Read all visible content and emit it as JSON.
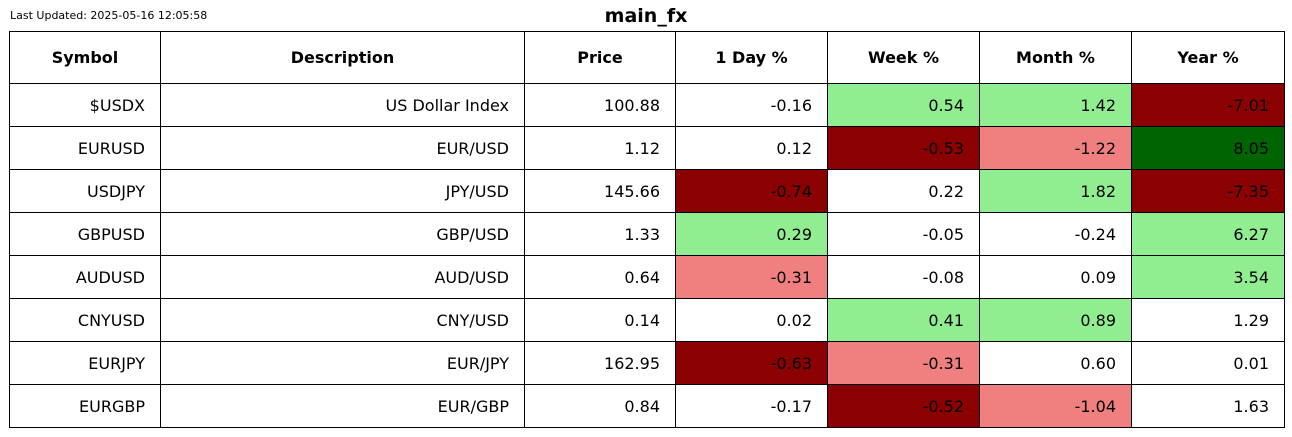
{
  "last_updated": "Last Updated: 2025-05-16 12:05:58",
  "title": "main_fx",
  "colors": {
    "strong_negative": "#8b0000",
    "negative": "#f08080",
    "positive": "#90ee90",
    "strong_positive": "#006400",
    "neutral": "#ffffff"
  },
  "chart_data": {
    "type": "table",
    "title": "main_fx",
    "columns": [
      "Symbol",
      "Description",
      "Price",
      "1 Day %",
      "Week %",
      "Month %",
      "Year %"
    ],
    "rows": [
      {
        "symbol": "$USDX",
        "description": "US Dollar Index",
        "price": "100.88",
        "day": "-0.16",
        "week": "0.54",
        "month": "1.42",
        "year": "-7.01"
      },
      {
        "symbol": "EURUSD",
        "description": "EUR/USD",
        "price": "1.12",
        "day": "0.12",
        "week": "-0.53",
        "month": "-1.22",
        "year": "8.05"
      },
      {
        "symbol": "USDJPY",
        "description": "JPY/USD",
        "price": "145.66",
        "day": "-0.74",
        "week": "0.22",
        "month": "1.82",
        "year": "-7.35"
      },
      {
        "symbol": "GBPUSD",
        "description": "GBP/USD",
        "price": "1.33",
        "day": "0.29",
        "week": "-0.05",
        "month": "-0.24",
        "year": "6.27"
      },
      {
        "symbol": "AUDUSD",
        "description": "AUD/USD",
        "price": "0.64",
        "day": "-0.31",
        "week": "-0.08",
        "month": "0.09",
        "year": "3.54"
      },
      {
        "symbol": "CNYUSD",
        "description": "CNY/USD",
        "price": "0.14",
        "day": "0.02",
        "week": "0.41",
        "month": "0.89",
        "year": "1.29"
      },
      {
        "symbol": "EURJPY",
        "description": "EUR/JPY",
        "price": "162.95",
        "day": "-0.63",
        "week": "-0.31",
        "month": "0.60",
        "year": "0.01"
      },
      {
        "symbol": "EURGBP",
        "description": "EUR/GBP",
        "price": "0.84",
        "day": "-0.17",
        "week": "-0.52",
        "month": "-1.04",
        "year": "1.63"
      }
    ]
  }
}
